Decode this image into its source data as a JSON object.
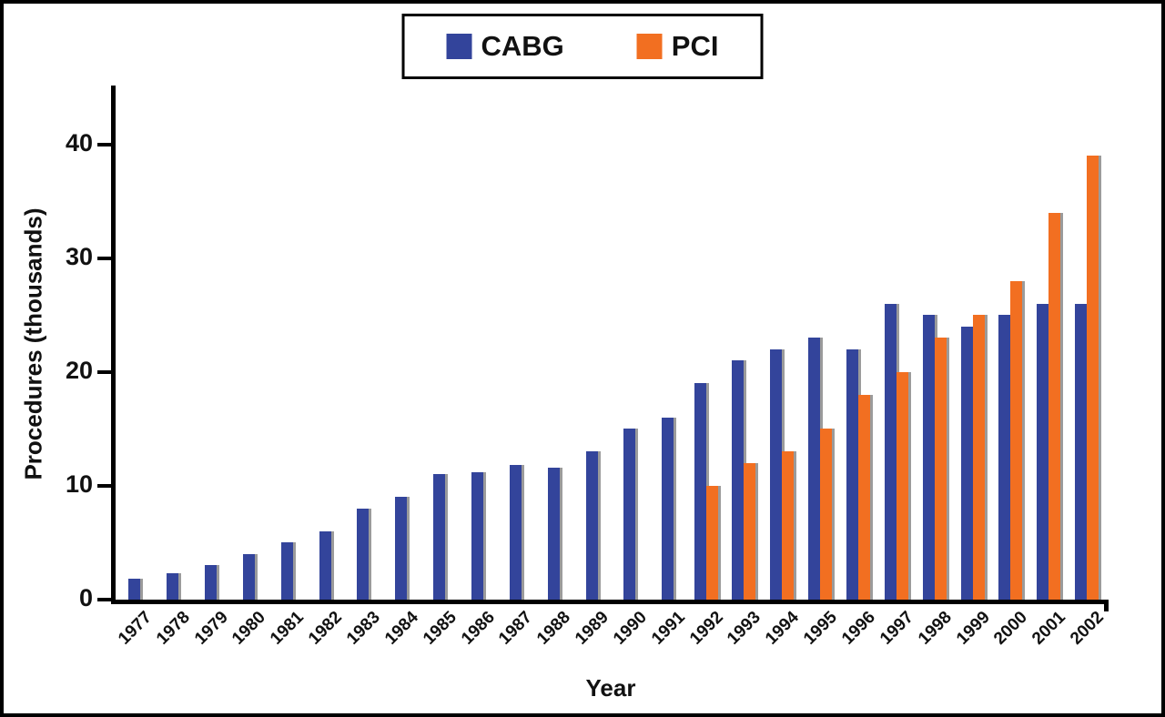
{
  "chart_data": {
    "type": "bar",
    "title": "",
    "xlabel": "Year",
    "ylabel": "Procedures (thousands)",
    "ylim": [
      0,
      45
    ],
    "yticks": [
      0,
      10,
      20,
      30,
      40
    ],
    "grid": false,
    "legend_position": "top-center",
    "categories": [
      "1977",
      "1978",
      "1979",
      "1980",
      "1981",
      "1982",
      "1983",
      "1984",
      "1985",
      "1986",
      "1987",
      "1988",
      "1989",
      "1990",
      "1991",
      "1992",
      "1993",
      "1994",
      "1995",
      "1996",
      "1997",
      "1998",
      "1999",
      "2000",
      "2001",
      "2002"
    ],
    "series": [
      {
        "name": "CABG",
        "color": "#33449B",
        "values": [
          1.8,
          2.3,
          3,
          4,
          5,
          6,
          8,
          9,
          11,
          11.2,
          11.8,
          11.6,
          13,
          15,
          16,
          19,
          21,
          22,
          23,
          22,
          26,
          25,
          24,
          25,
          26,
          26
        ]
      },
      {
        "name": "PCI",
        "color": "#F26F21",
        "values": [
          0,
          0,
          0,
          0,
          0,
          0,
          0,
          0,
          0,
          0,
          0,
          0,
          0,
          0,
          0,
          10,
          12,
          13,
          15,
          18,
          20,
          23,
          25,
          28,
          34,
          39
        ]
      }
    ],
    "shadow_color": "#9b9b9b"
  }
}
